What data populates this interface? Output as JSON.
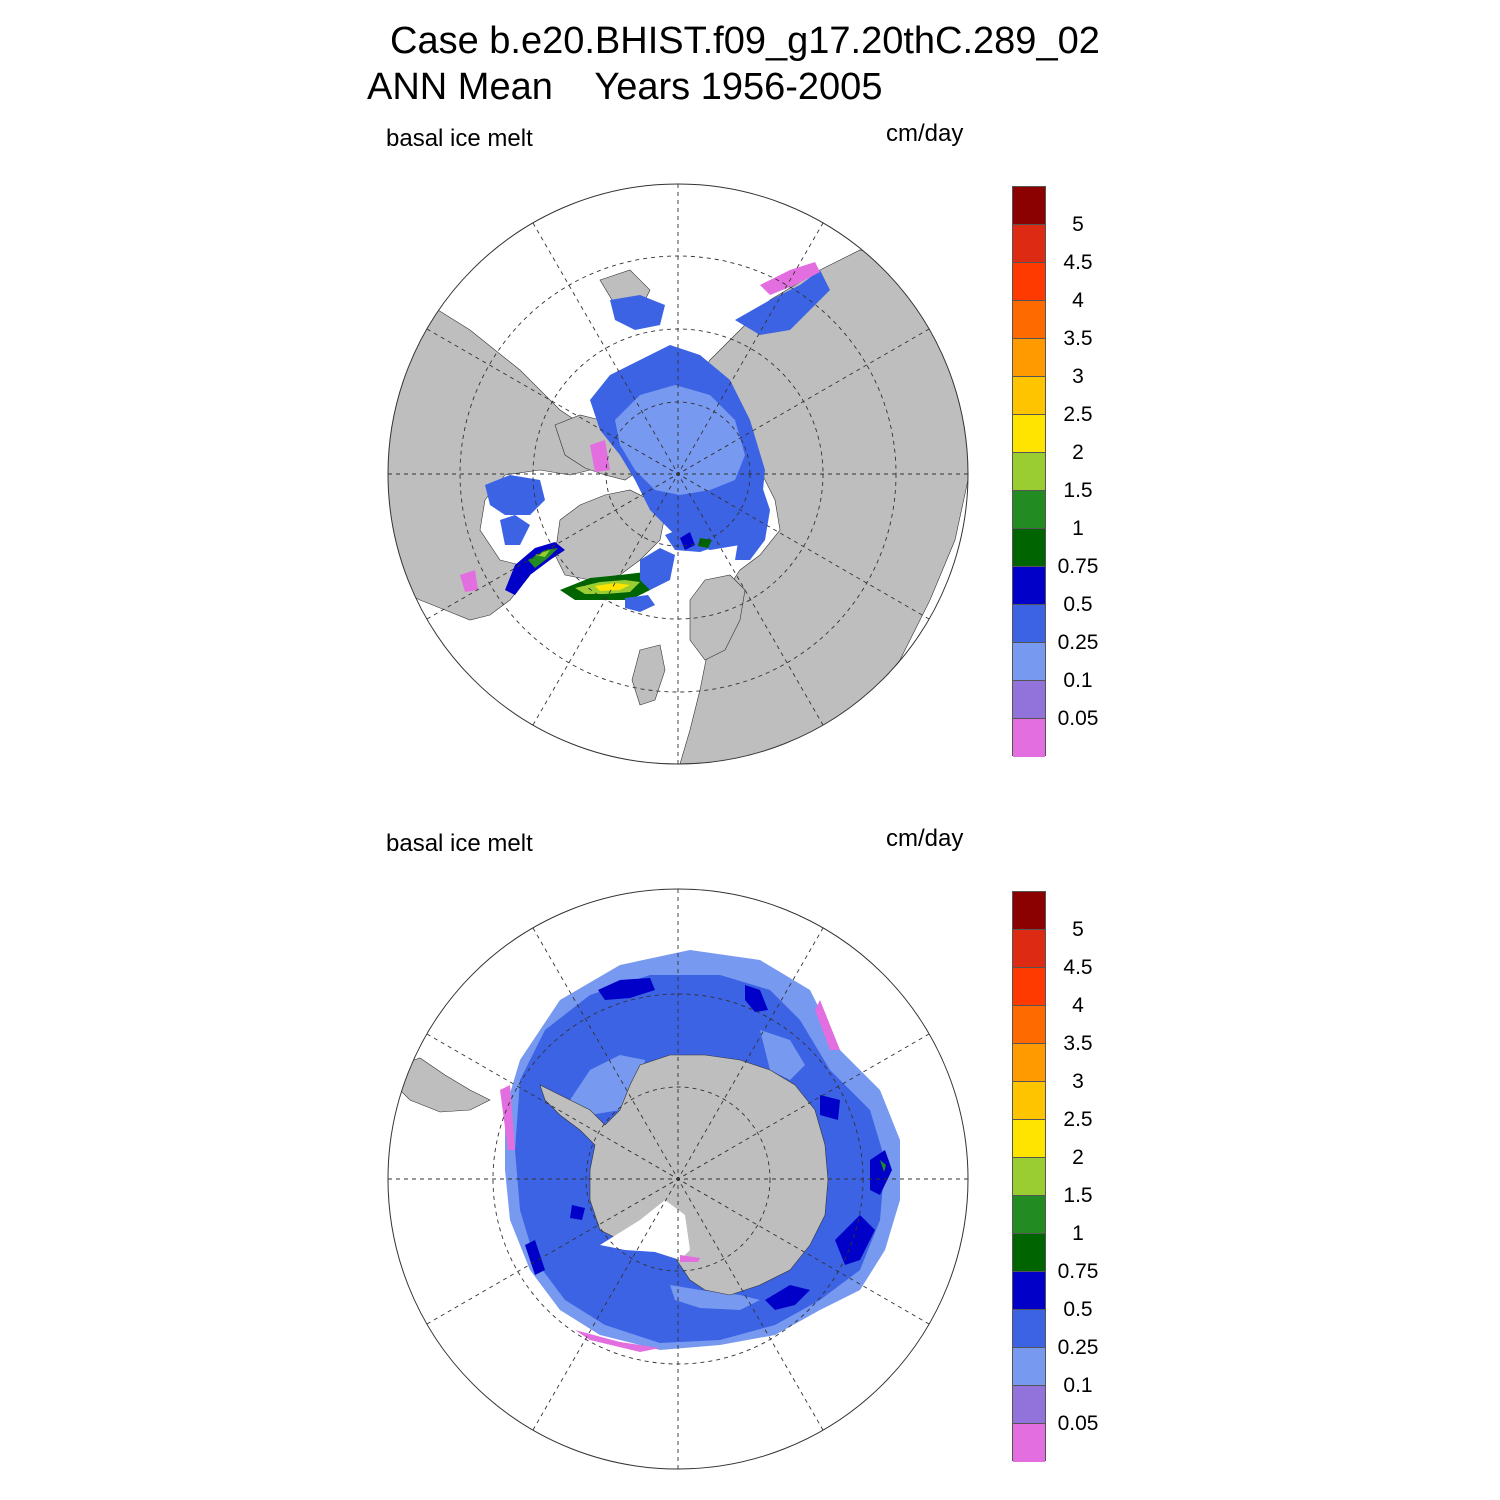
{
  "title": {
    "line1": "Case b.e20.BHIST.f09_g17.20thC.289_02",
    "line2": "ANN Mean    Years 1956-2005"
  },
  "colors": {
    "land": "#bebebe",
    "ocean": "#ffffff",
    "levels": [
      "#e36ee0",
      "#9273dc",
      "#7799f0",
      "#3c63e4",
      "#0000c8",
      "#006400",
      "#228b22",
      "#9acd32",
      "#ffe400",
      "#ffc400",
      "#ff9a00",
      "#ff6a00",
      "#ff3a00",
      "#dd2a12",
      "#8b0000"
    ]
  },
  "panels": [
    {
      "id": "north",
      "variable": "basal ice melt",
      "units": "cm/day",
      "hemisphere": "Northern Hemisphere polar stereographic",
      "colorbar": {
        "ticks": [
          "0.05",
          "0.1",
          "0.25",
          "0.5",
          "0.75",
          "1",
          "1.5",
          "2",
          "2.5",
          "3",
          "3.5",
          "4",
          "4.5",
          "5"
        ]
      }
    },
    {
      "id": "south",
      "variable": "basal ice melt",
      "units": "cm/day",
      "hemisphere": "Southern Hemisphere polar stereographic",
      "colorbar": {
        "ticks": [
          "0.05",
          "0.1",
          "0.25",
          "0.5",
          "0.75",
          "1",
          "1.5",
          "2",
          "2.5",
          "3",
          "3.5",
          "4",
          "4.5",
          "5"
        ]
      }
    }
  ]
}
